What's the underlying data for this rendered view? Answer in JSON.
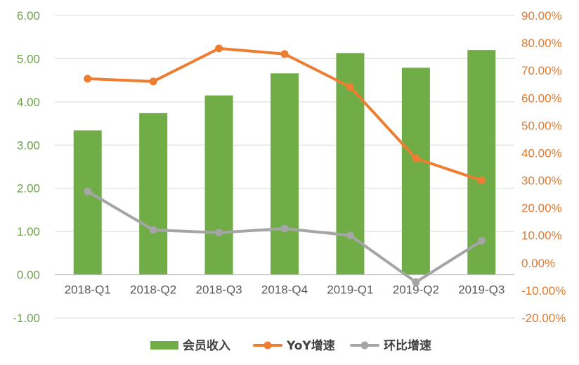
{
  "chart_data": {
    "type": "bar+line",
    "categories": [
      "2018-Q1",
      "2018-Q2",
      "2018-Q3",
      "2018-Q4",
      "2019-Q1",
      "2019-Q2",
      "2019-Q3"
    ],
    "series": [
      {
        "name": "会员收入",
        "type": "bar",
        "axis": "left",
        "color": "#70ad47",
        "values": [
          3.34,
          3.74,
          4.15,
          4.66,
          5.13,
          4.79,
          5.2
        ]
      },
      {
        "name": "YoY增速",
        "type": "line",
        "axis": "right",
        "color": "#ed7d31",
        "values": [
          67.0,
          66.0,
          78.0,
          76.0,
          64.0,
          38.0,
          30.0
        ]
      },
      {
        "name": "环比增速",
        "type": "line",
        "axis": "right",
        "color": "#a5a5a5",
        "values": [
          26.0,
          12.0,
          11.0,
          12.5,
          10.0,
          -7.0,
          8.0
        ]
      }
    ],
    "left_axis": {
      "min": -1,
      "max": 6,
      "step": 1,
      "ticks": [
        "6.00",
        "5.00",
        "4.00",
        "3.00",
        "2.00",
        "1.00",
        "0.00",
        "-1.00"
      ]
    },
    "right_axis": {
      "min": -20,
      "max": 90,
      "step": 10,
      "ticks": [
        "90.00%",
        "80.00%",
        "70.00%",
        "60.00%",
        "50.00%",
        "40.00%",
        "30.00%",
        "20.00%",
        "10.00%",
        "0.00%",
        "-10.00%",
        "-20.00%"
      ]
    },
    "gridlines": true,
    "legend": {
      "position": "bottom",
      "items": [
        "会员收入",
        "YoY增速",
        "环比增速"
      ]
    }
  }
}
